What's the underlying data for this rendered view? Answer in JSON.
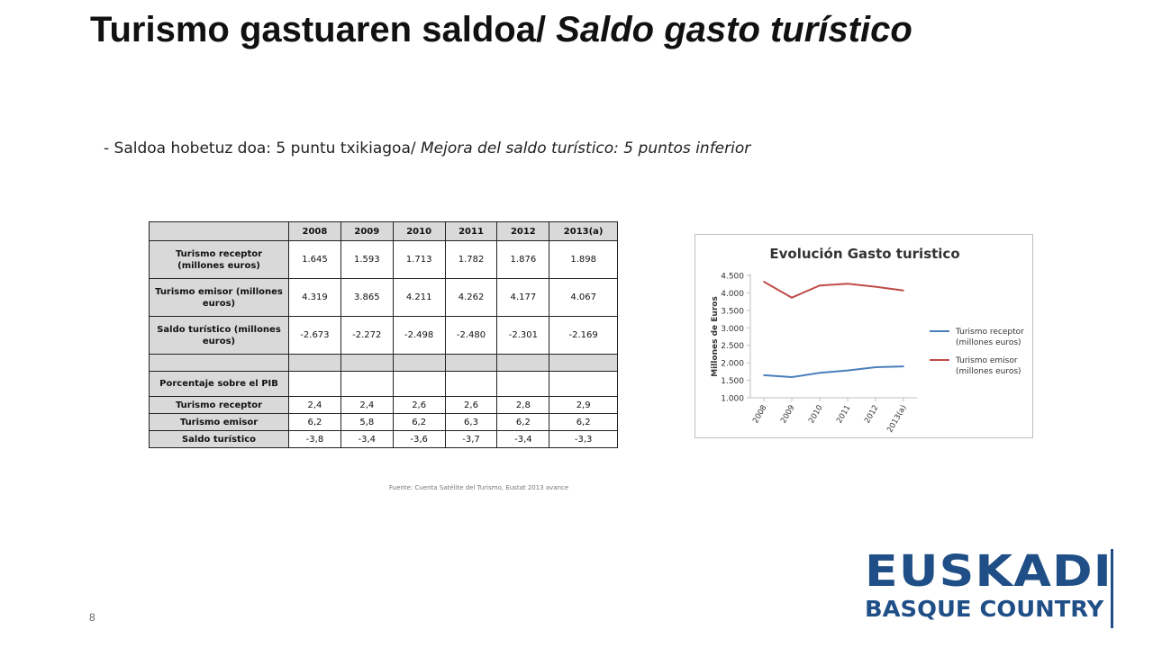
{
  "slide": {
    "title_main": "Turismo gastuaren saldoa/ ",
    "title_italic": "Saldo gasto turístico",
    "subtitle_main": "- Saldoa hobetuz doa: 5 puntu txikiagoa/ ",
    "subtitle_italic": "Mejora del saldo turístico: 5 puntos inferior",
    "page_number": "8",
    "source": "Fuente: Cuenta Satélite del Turismo, Eustat 2013 avance",
    "logo_line1": "EUSKADI",
    "logo_line2": "BASQUE COUNTRY"
  },
  "table": {
    "headers": [
      "2008",
      "2009",
      "2010",
      "2011",
      "2012",
      "2013(a)"
    ],
    "rows": [
      {
        "label": "Turismo receptor (millones euros)",
        "values": [
          "1.645",
          "1.593",
          "1.713",
          "1.782",
          "1.876",
          "1.898"
        ]
      },
      {
        "label": "Turismo emisor (millones euros)",
        "values": [
          "4.319",
          "3.865",
          "4.211",
          "4.262",
          "4.177",
          "4.067"
        ]
      },
      {
        "label": "Saldo turístico (millones euros)",
        "values": [
          "-2.673",
          "-2.272",
          "-2.498",
          "-2.480",
          "-2.301",
          "-2.169"
        ]
      }
    ],
    "pib_label": "Porcentaje sobre el PIB",
    "pib_rows": [
      {
        "label": "Turismo receptor",
        "values": [
          "2,4",
          "2,4",
          "2,6",
          "2,6",
          "2,8",
          "2,9"
        ]
      },
      {
        "label": "Turismo emisor",
        "values": [
          "6,2",
          "5,8",
          "6,2",
          "6,3",
          "6,2",
          "6,2"
        ]
      },
      {
        "label": "Saldo turístico",
        "values": [
          "-3,8",
          "-3,4",
          "-3,6",
          "-3,7",
          "-3,4",
          "-3,3"
        ]
      }
    ]
  },
  "chart_data": {
    "type": "line",
    "title": "Evolución Gasto turistico",
    "xlabel": "",
    "ylabel": "Millones de Euros",
    "categories": [
      "2008",
      "2009",
      "2010",
      "2011",
      "2012",
      "2013(a)"
    ],
    "ylim": [
      1000,
      4500
    ],
    "yticks": [
      "1.000",
      "1.500",
      "2.000",
      "2.500",
      "3.000",
      "3.500",
      "4.000",
      "4.500"
    ],
    "ytick_values": [
      1000,
      1500,
      2000,
      2500,
      3000,
      3500,
      4000,
      4500
    ],
    "grid": false,
    "legend_position": "right",
    "series": [
      {
        "name": "Turismo receptor (millones euros)",
        "legend_lines": [
          "Turismo receptor",
          "(millones euros)"
        ],
        "color": "#4a7ebb",
        "values": [
          1645,
          1593,
          1713,
          1782,
          1876,
          1898
        ]
      },
      {
        "name": "Turismo emisor (millones euros)",
        "legend_lines": [
          "Turismo emisor",
          "(millones euros)"
        ],
        "color": "#be4b48",
        "values": [
          4319,
          3865,
          4211,
          4262,
          4177,
          4067
        ]
      }
    ]
  }
}
